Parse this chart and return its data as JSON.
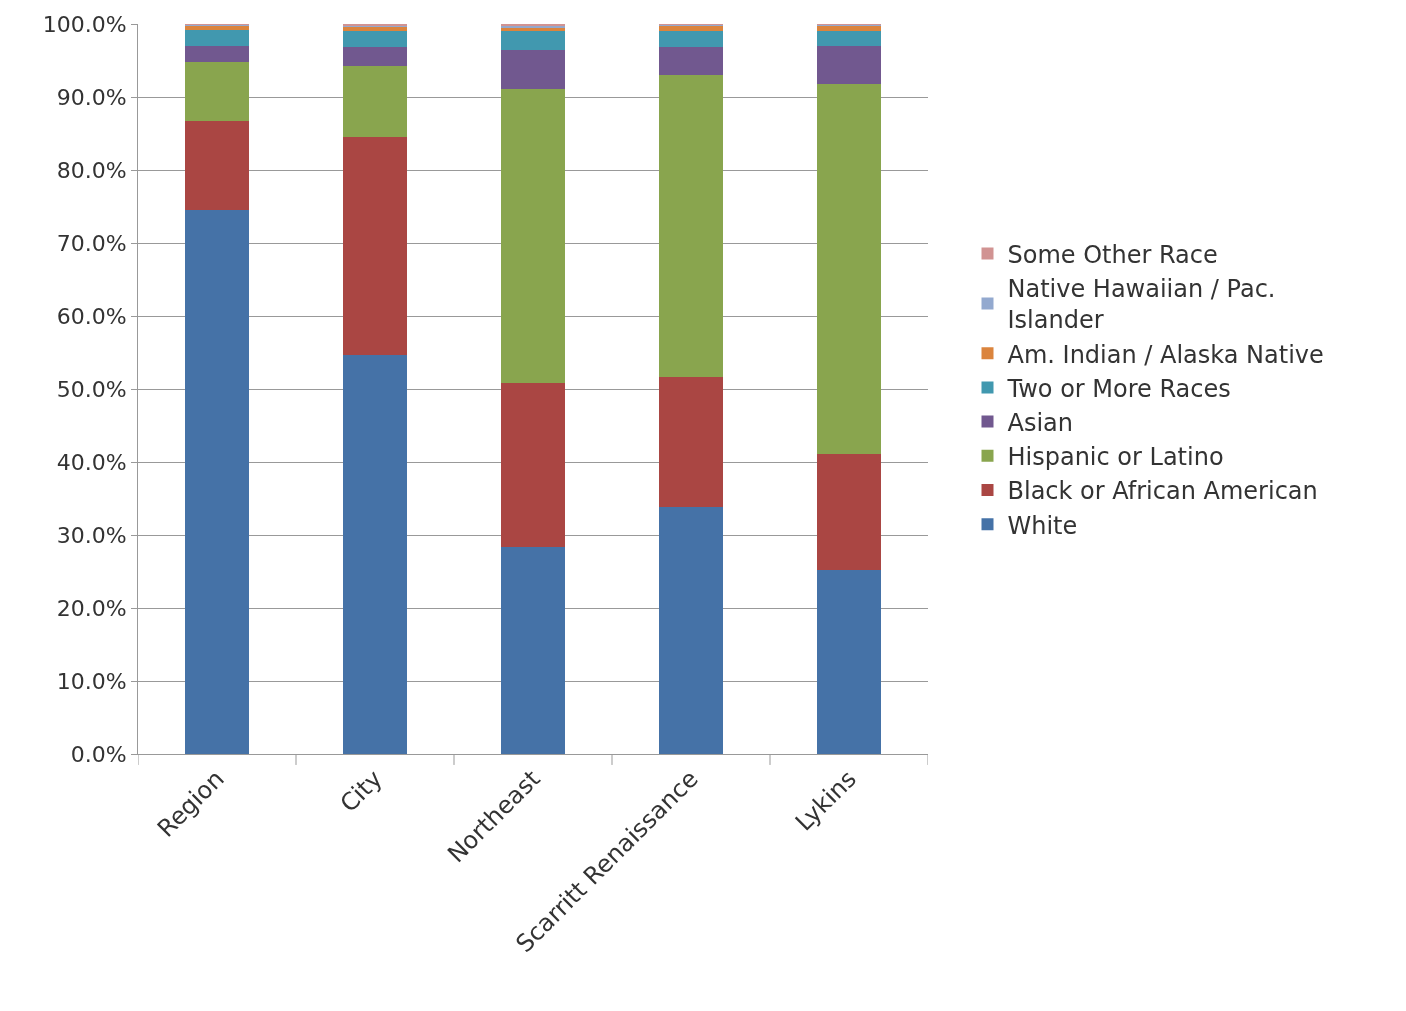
{
  "chart_data": {
    "type": "bar",
    "stacked": true,
    "categories": [
      "Region",
      "City",
      "Northeast",
      "Scarritt Renaissance",
      "Lykins"
    ],
    "series": [
      {
        "name": "White",
        "color": "#4572a7",
        "values": [
          74.5,
          54.6,
          28.3,
          33.8,
          25.2
        ]
      },
      {
        "name": "Black or African American",
        "color": "#aa4643",
        "values": [
          12.2,
          29.9,
          22.5,
          17.8,
          15.9
        ]
      },
      {
        "name": "Hispanic or Latino",
        "color": "#89a54e",
        "values": [
          8.1,
          9.8,
          40.3,
          41.4,
          50.7
        ]
      },
      {
        "name": "Asian",
        "color": "#71588f",
        "values": [
          2.2,
          2.6,
          5.4,
          3.8,
          5.2
        ]
      },
      {
        "name": "Two or More Races",
        "color": "#4198af",
        "values": [
          2.2,
          2.2,
          2.6,
          2.2,
          2.0
        ]
      },
      {
        "name": "Am. Indian / Alaska Native",
        "color": "#db843d",
        "values": [
          0.6,
          0.5,
          0.4,
          0.8,
          0.8
        ]
      },
      {
        "name": "Native Hawaiian / Pac. Islander",
        "color": "#93a9cf",
        "values": [
          0.1,
          0.1,
          0.2,
          0.1,
          0.1
        ]
      },
      {
        "name": "Some Other Race",
        "color": "#d19392",
        "values": [
          0.1,
          0.3,
          0.3,
          0.1,
          0.1
        ]
      }
    ],
    "ylim": [
      0,
      100
    ],
    "yticks": [
      {
        "value": 0,
        "label": "0.0%"
      },
      {
        "value": 10,
        "label": "10.0%"
      },
      {
        "value": 20,
        "label": "20.0%"
      },
      {
        "value": 30,
        "label": "30.0%"
      },
      {
        "value": 40,
        "label": "40.0%"
      },
      {
        "value": 50,
        "label": "50.0%"
      },
      {
        "value": 60,
        "label": "60.0%"
      },
      {
        "value": 70,
        "label": "70.0%"
      },
      {
        "value": 80,
        "label": "80.0%"
      },
      {
        "value": 90,
        "label": "90.0%"
      },
      {
        "value": 100,
        "label": "100.0%"
      }
    ],
    "grid": "y",
    "legend": "right"
  }
}
